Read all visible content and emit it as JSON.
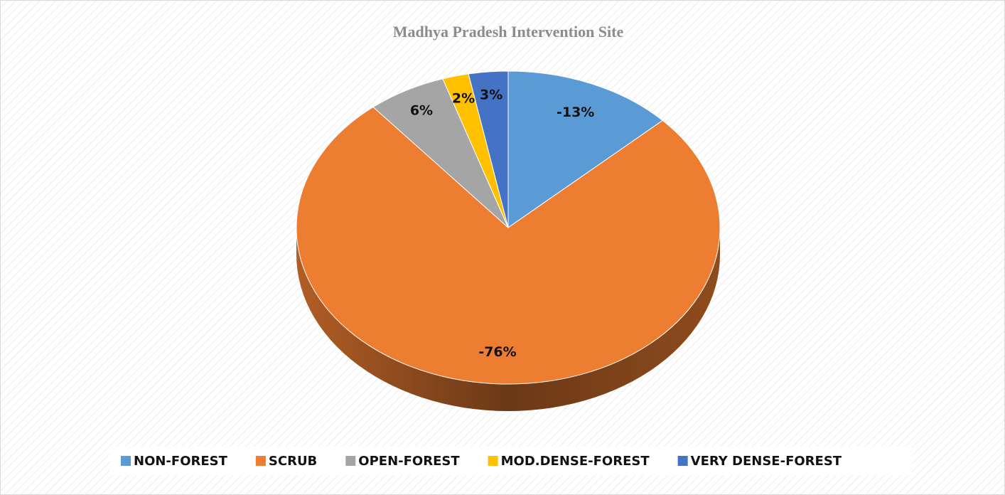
{
  "chart_data": {
    "type": "pie3d",
    "title": "Madhya Pradesh Intervention Site",
    "categories": [
      "NON-FOREST",
      "SCRUB",
      "OPEN-FOREST",
      "MOD.DENSE-FOREST",
      "VERY DENSE-FOREST"
    ],
    "values": [
      -13,
      -76,
      6,
      2,
      3
    ],
    "value_labels": [
      "-13%",
      "-76%",
      "6%",
      "2%",
      "3%"
    ],
    "colors": [
      "#5b9bd5",
      "#ed7d31",
      "#a5a5a5",
      "#ffc000",
      "#4472c4"
    ],
    "legend": "bottom"
  }
}
